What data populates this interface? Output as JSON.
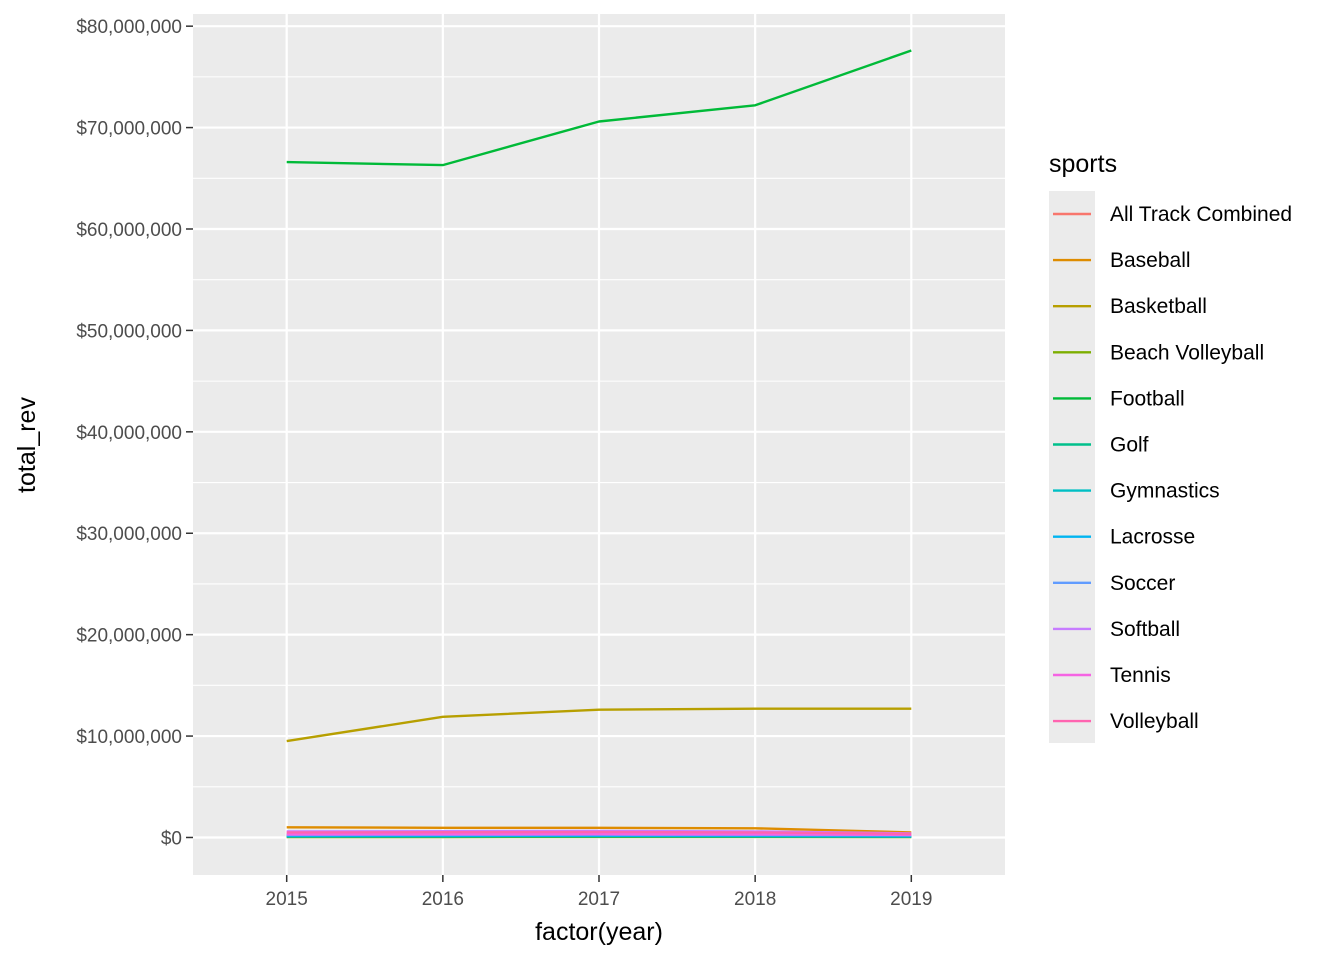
{
  "chart_data": {
    "type": "line",
    "xlabel": "factor(year)",
    "ylabel": "total_rev",
    "x": [
      "2015",
      "2016",
      "2017",
      "2018",
      "2019"
    ],
    "ylim": [
      -3700000,
      81200000
    ],
    "yticks": [
      0,
      10000000,
      20000000,
      30000000,
      40000000,
      50000000,
      60000000,
      70000000,
      80000000
    ],
    "ytick_labels": [
      "$0",
      "$10,000,000",
      "$20,000,000",
      "$30,000,000",
      "$40,000,000",
      "$50,000,000",
      "$60,000,000",
      "$70,000,000",
      "$80,000,000"
    ],
    "grid": true,
    "legend": {
      "title": "sports",
      "position": "right"
    },
    "series": [
      {
        "name": "All Track Combined",
        "color": "#F8766D",
        "values": [
          350000,
          330000,
          360000,
          340000,
          300000
        ]
      },
      {
        "name": "Baseball",
        "color": "#DE8C00",
        "values": [
          1000000,
          950000,
          950000,
          900000,
          500000
        ]
      },
      {
        "name": "Basketball",
        "color": "#B79F00",
        "values": [
          9500000,
          11900000,
          12600000,
          12700000,
          12700000
        ]
      },
      {
        "name": "Beach Volleyball",
        "color": "#7CAE00",
        "values": [
          50000,
          50000,
          60000,
          60000,
          40000
        ]
      },
      {
        "name": "Football",
        "color": "#00BA38",
        "values": [
          66600000,
          66300000,
          70600000,
          72200000,
          77600000
        ]
      },
      {
        "name": "Golf",
        "color": "#00C08B",
        "values": [
          100000,
          100000,
          110000,
          100000,
          80000
        ]
      },
      {
        "name": "Gymnastics",
        "color": "#00BFC4",
        "values": [
          200000,
          210000,
          220000,
          200000,
          150000
        ]
      },
      {
        "name": "Lacrosse",
        "color": "#00B4F0",
        "values": [
          150000,
          160000,
          170000,
          160000,
          120000
        ]
      },
      {
        "name": "Soccer",
        "color": "#619CFF",
        "values": [
          250000,
          260000,
          270000,
          250000,
          200000
        ]
      },
      {
        "name": "Softball",
        "color": "#C77CFF",
        "values": [
          600000,
          620000,
          650000,
          600000,
          400000
        ]
      },
      {
        "name": "Tennis",
        "color": "#F564E3",
        "values": [
          300000,
          310000,
          320000,
          300000,
          250000
        ]
      },
      {
        "name": "Volleyball",
        "color": "#FF64B0",
        "values": [
          500000,
          520000,
          540000,
          500000,
          350000
        ]
      }
    ]
  }
}
